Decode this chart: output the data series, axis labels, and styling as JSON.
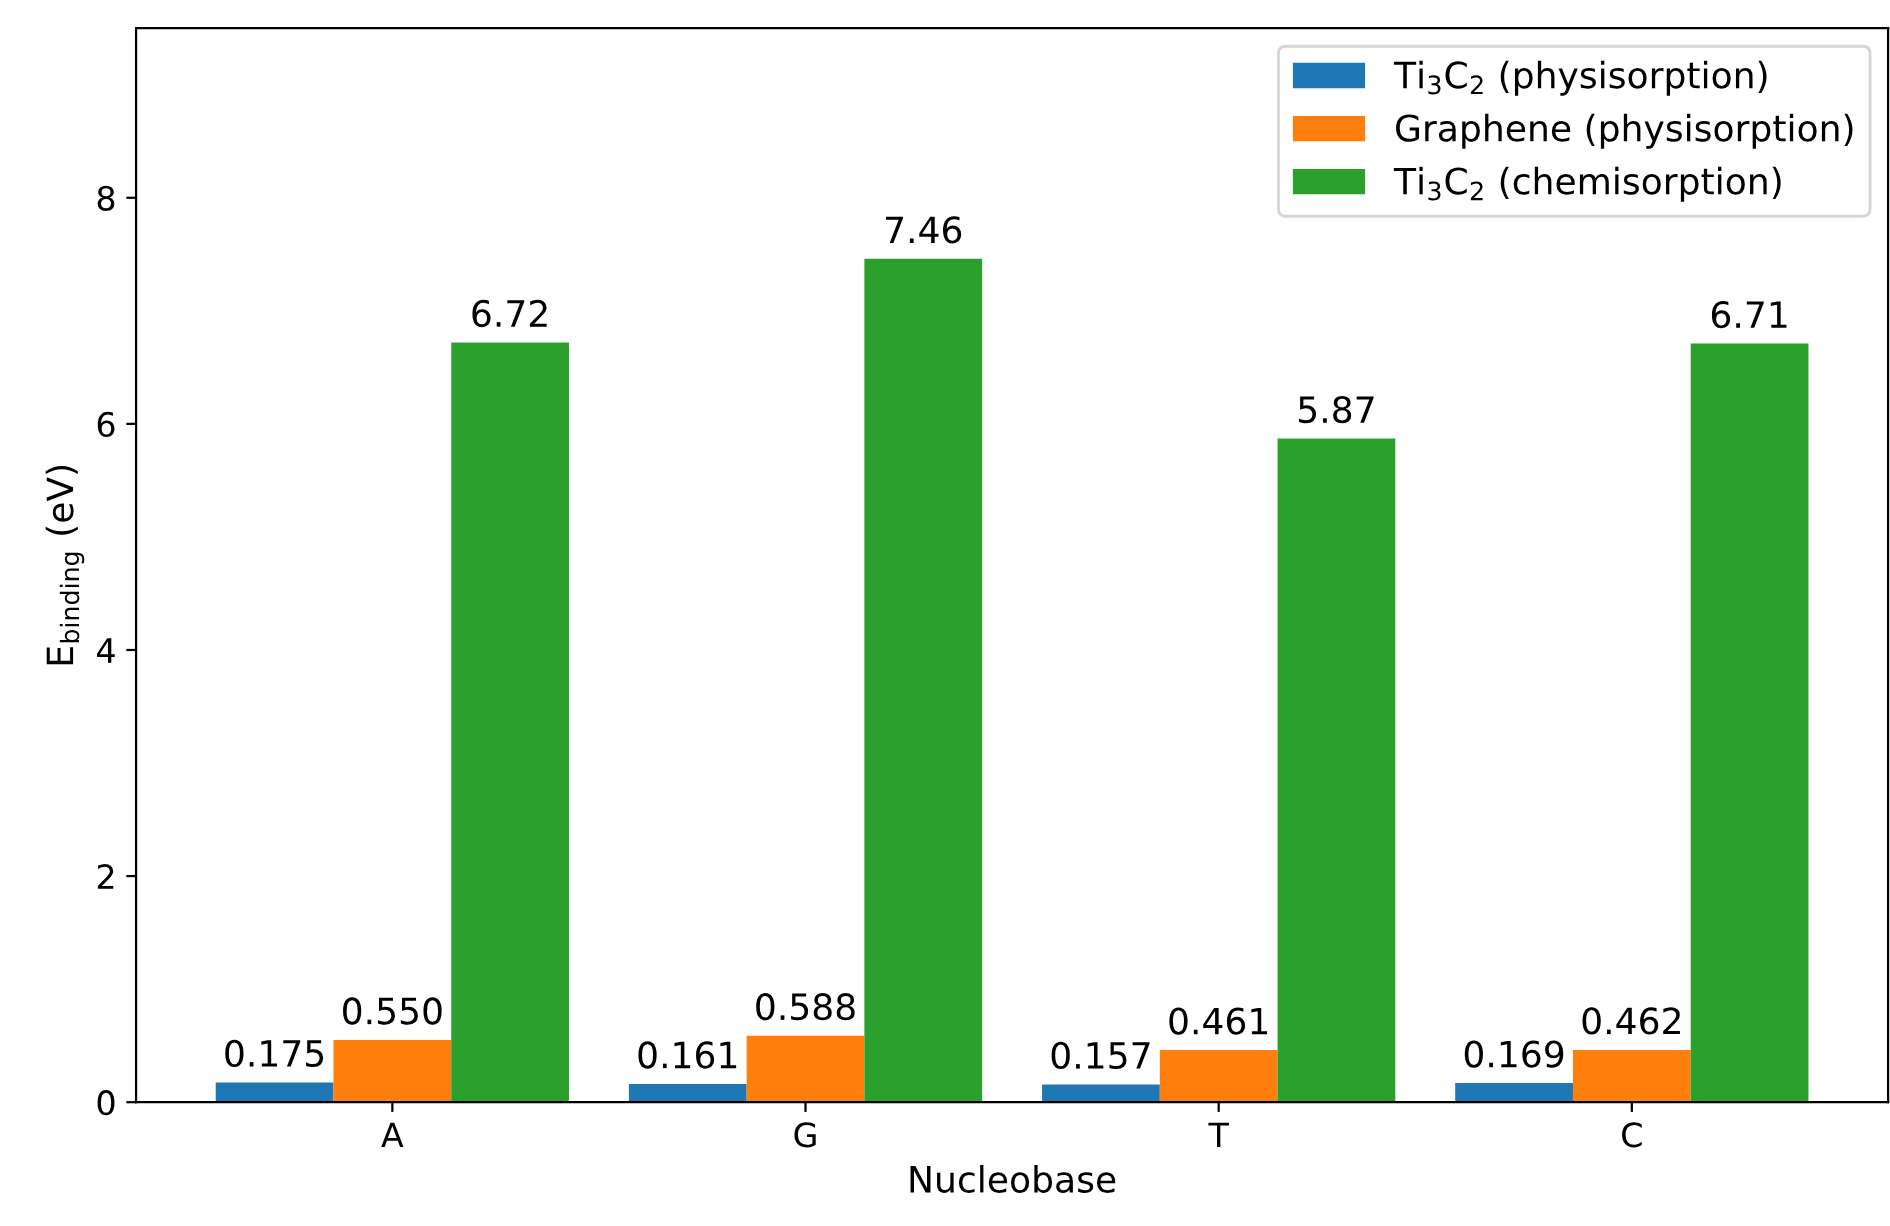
{
  "chart_data": {
    "type": "bar",
    "xlabel": "Nucleobase",
    "ylabel": "E$_{binding}$ (eV)",
    "categories": [
      "A",
      "G",
      "T",
      "C"
    ],
    "series": [
      {
        "name": "Ti$_{3}$C$_{2}$ (physisorption)",
        "color": "#1f77b4",
        "values": [
          0.175,
          0.161,
          0.157,
          0.169
        ],
        "value_labels": [
          "0.175",
          "0.161",
          "0.157",
          "0.169"
        ]
      },
      {
        "name": "Graphene (physisorption)",
        "color": "#ff7f0e",
        "values": [
          0.55,
          0.588,
          0.461,
          0.462
        ],
        "value_labels": [
          "0.550",
          "0.588",
          "0.461",
          "0.462"
        ]
      },
      {
        "name": "Ti$_{3}$C$_{2}$ (chemisorption)",
        "color": "#2ca02c",
        "values": [
          6.72,
          7.46,
          5.87,
          6.71
        ],
        "value_labels": [
          "6.72",
          "7.46",
          "5.87",
          "6.71"
        ]
      }
    ],
    "ylim": [
      0,
      9.5
    ],
    "yticks": [
      0,
      2,
      4,
      6,
      8
    ],
    "legend": "top right",
    "grid": false
  }
}
